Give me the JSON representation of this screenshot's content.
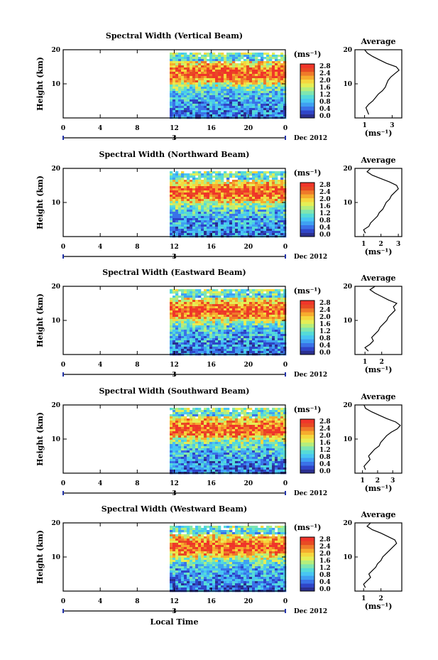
{
  "figure": {
    "x_axis_label": "Local Time",
    "avg_title": "Average",
    "unit_label": "(ms⁻¹)",
    "date_label": "Dec 2012",
    "date_marker": "3",
    "y_axis_label": "Height (km)"
  },
  "chart_data": [
    {
      "type": "heatmap",
      "title": "Spectral Width (Vertical Beam)",
      "ylabel": "Height (km)",
      "x_ticks": [
        "0",
        "4",
        "8",
        "12",
        "16",
        "20",
        "0"
      ],
      "y_ticks": [
        "20",
        "10"
      ],
      "colorbar_ticks": [
        "2.8",
        "2.4",
        "2.0",
        "1.6",
        "1.2",
        "0.8",
        "0.4",
        "0.0"
      ],
      "data_start_hour": 11.5,
      "x_range": [
        0,
        24
      ],
      "y_range": [
        0,
        20
      ],
      "avg_profile": {
        "title": "Average",
        "xlabel": "(ms⁻¹)",
        "x_ticks": [
          "1",
          "3"
        ],
        "y_ticks": [
          "20",
          "10"
        ],
        "x_range": [
          0.3,
          3.7
        ],
        "points": [
          [
            1.3,
            1
          ],
          [
            1.2,
            2
          ],
          [
            1.1,
            3
          ],
          [
            1.3,
            4
          ],
          [
            1.6,
            5
          ],
          [
            1.8,
            6
          ],
          [
            2.0,
            7
          ],
          [
            2.3,
            8
          ],
          [
            2.5,
            9
          ],
          [
            2.6,
            10
          ],
          [
            2.7,
            11
          ],
          [
            2.9,
            12
          ],
          [
            3.2,
            13
          ],
          [
            3.5,
            14
          ],
          [
            3.3,
            15
          ],
          [
            2.6,
            16
          ],
          [
            2.1,
            17
          ],
          [
            1.6,
            18
          ],
          [
            1.2,
            19
          ],
          [
            1.0,
            20
          ]
        ]
      }
    },
    {
      "type": "heatmap",
      "title": "Spectral Width (Northward Beam)",
      "ylabel": "Height (km)",
      "x_ticks": [
        "0",
        "4",
        "8",
        "12",
        "16",
        "20",
        "0"
      ],
      "y_ticks": [
        "20",
        "10"
      ],
      "colorbar_ticks": [
        "2.8",
        "2.4",
        "2.0",
        "1.6",
        "1.2",
        "0.8",
        "0.4",
        "0.0"
      ],
      "data_start_hour": 11.5,
      "x_range": [
        0,
        24
      ],
      "y_range": [
        0,
        20
      ],
      "avg_profile": {
        "title": "Average",
        "xlabel": "(ms⁻¹)",
        "x_ticks": [
          "1",
          "2",
          "3"
        ],
        "y_ticks": [
          "20",
          "10"
        ],
        "x_range": [
          0.5,
          3.2
        ],
        "points": [
          [
            1.1,
            1
          ],
          [
            1.0,
            2
          ],
          [
            1.3,
            3
          ],
          [
            1.4,
            4
          ],
          [
            1.6,
            5
          ],
          [
            1.8,
            6
          ],
          [
            1.9,
            7
          ],
          [
            2.1,
            8
          ],
          [
            2.2,
            9
          ],
          [
            2.3,
            10
          ],
          [
            2.5,
            11
          ],
          [
            2.6,
            12
          ],
          [
            2.8,
            13
          ],
          [
            3.0,
            14
          ],
          [
            2.9,
            15
          ],
          [
            2.5,
            16
          ],
          [
            2.0,
            17
          ],
          [
            1.5,
            18
          ],
          [
            1.2,
            19
          ],
          [
            1.4,
            20
          ]
        ]
      }
    },
    {
      "type": "heatmap",
      "title": "Spectral Width (Eastward Beam)",
      "ylabel": "Height (km)",
      "x_ticks": [
        "0",
        "4",
        "8",
        "12",
        "16",
        "20",
        "0"
      ],
      "y_ticks": [
        "20",
        "10"
      ],
      "colorbar_ticks": [
        "2.8",
        "2.4",
        "2.0",
        "1.6",
        "1.2",
        "0.8",
        "0.4",
        "0.0"
      ],
      "data_start_hour": 11.5,
      "x_range": [
        0,
        24
      ],
      "y_range": [
        0,
        20
      ],
      "avg_profile": {
        "title": "Average",
        "xlabel": "(ms⁻¹)",
        "x_ticks": [
          "1",
          "2"
        ],
        "y_ticks": [
          "20",
          "10"
        ],
        "x_range": [
          0.4,
          3.2
        ],
        "points": [
          [
            1.2,
            1
          ],
          [
            1.0,
            2
          ],
          [
            1.3,
            3
          ],
          [
            1.5,
            4
          ],
          [
            1.4,
            5
          ],
          [
            1.6,
            6
          ],
          [
            1.8,
            7
          ],
          [
            1.9,
            8
          ],
          [
            2.1,
            9
          ],
          [
            2.3,
            10
          ],
          [
            2.4,
            11
          ],
          [
            2.6,
            12
          ],
          [
            2.8,
            13
          ],
          [
            2.7,
            14
          ],
          [
            2.9,
            15
          ],
          [
            2.4,
            16
          ],
          [
            2.0,
            17
          ],
          [
            1.6,
            18
          ],
          [
            1.3,
            19
          ],
          [
            1.6,
            20
          ]
        ]
      }
    },
    {
      "type": "heatmap",
      "title": "Spectral Width (Southward Beam)",
      "ylabel": "Height (km)",
      "x_ticks": [
        "0",
        "4",
        "8",
        "12",
        "16",
        "20",
        "0"
      ],
      "y_ticks": [
        "20",
        "10"
      ],
      "colorbar_ticks": [
        "2.8",
        "2.4",
        "2.0",
        "1.6",
        "1.2",
        "0.8",
        "0.4",
        "0.0"
      ],
      "data_start_hour": 11.5,
      "x_range": [
        0,
        24
      ],
      "y_range": [
        0,
        20
      ],
      "avg_profile": {
        "title": "Average",
        "xlabel": "(ms⁻¹)",
        "x_ticks": [
          "1",
          "2",
          "3"
        ],
        "y_ticks": [
          "20",
          "10"
        ],
        "x_range": [
          0.5,
          3.6
        ],
        "points": [
          [
            1.2,
            1
          ],
          [
            1.1,
            2
          ],
          [
            1.3,
            3
          ],
          [
            1.5,
            4
          ],
          [
            1.4,
            5
          ],
          [
            1.6,
            6
          ],
          [
            1.8,
            7
          ],
          [
            2.1,
            8
          ],
          [
            2.2,
            9
          ],
          [
            2.4,
            10
          ],
          [
            2.6,
            11
          ],
          [
            2.9,
            12
          ],
          [
            3.3,
            13
          ],
          [
            3.5,
            14
          ],
          [
            3.2,
            15
          ],
          [
            2.6,
            16
          ],
          [
            2.1,
            17
          ],
          [
            1.6,
            18
          ],
          [
            1.2,
            19
          ],
          [
            1.1,
            20
          ]
        ]
      }
    },
    {
      "type": "heatmap",
      "title": "Spectral Width (Westward Beam)",
      "ylabel": "Height (km)",
      "x_ticks": [
        "0",
        "4",
        "8",
        "12",
        "16",
        "20",
        "0"
      ],
      "y_ticks": [
        "20",
        "10"
      ],
      "colorbar_ticks": [
        "2.8",
        "2.4",
        "2.0",
        "1.6",
        "1.2",
        "0.8",
        "0.4",
        "0.0"
      ],
      "data_start_hour": 11.5,
      "x_range": [
        0,
        24
      ],
      "y_range": [
        0,
        20
      ],
      "avg_profile": {
        "title": "Average",
        "xlabel": "(ms⁻¹)",
        "x_ticks": [
          "1",
          "2"
        ],
        "y_ticks": [
          "20",
          "10"
        ],
        "x_range": [
          0.5,
          3.2
        ],
        "points": [
          [
            1.1,
            1
          ],
          [
            1.0,
            2
          ],
          [
            1.2,
            3
          ],
          [
            1.4,
            4
          ],
          [
            1.3,
            5
          ],
          [
            1.5,
            6
          ],
          [
            1.7,
            7
          ],
          [
            1.8,
            8
          ],
          [
            2.0,
            9
          ],
          [
            2.1,
            10
          ],
          [
            2.3,
            11
          ],
          [
            2.5,
            12
          ],
          [
            2.7,
            13
          ],
          [
            2.9,
            14
          ],
          [
            2.8,
            15
          ],
          [
            2.4,
            16
          ],
          [
            2.0,
            17
          ],
          [
            1.5,
            18
          ],
          [
            1.2,
            19
          ],
          [
            1.4,
            20
          ]
        ]
      }
    }
  ]
}
